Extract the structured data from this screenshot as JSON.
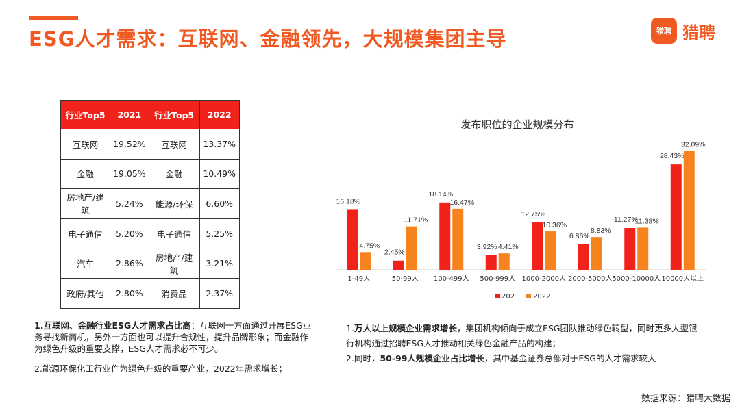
{
  "header": {
    "title": "ESG人才需求：互联网、金融领先，大规模集团主导",
    "logo_mark": "猎聘",
    "logo_text": "猎聘"
  },
  "colors": {
    "accent": "#f05a22",
    "table_header": "#f0221a",
    "series_2021": "#f0221a",
    "series_2022": "#f7831f"
  },
  "table": {
    "headers": [
      "行业Top5",
      "2021",
      "行业Top5",
      "2022"
    ],
    "rows": [
      [
        "互联网",
        "19.52%",
        "互联网",
        "13.37%"
      ],
      [
        "金融",
        "19.05%",
        "金融",
        "10.49%"
      ],
      [
        "房地产/建筑",
        "5.24%",
        "能源/环保",
        "6.60%"
      ],
      [
        "电子通信",
        "5.20%",
        "电子通信",
        "5.25%"
      ],
      [
        "汽车",
        "2.86%",
        "房地产/建筑",
        "3.21%"
      ],
      [
        "政府/其他",
        "2.80%",
        "消费品",
        "2.37%"
      ]
    ]
  },
  "chart_data": {
    "type": "bar",
    "title": "发布职位的企业规模分布",
    "categories": [
      "1-49人",
      "50-99人",
      "100-499人",
      "500-999人",
      "1000-2000人",
      "2000-5000人",
      "5000-10000人",
      "10000人以上"
    ],
    "series": [
      {
        "name": "2021",
        "values": [
          16.18,
          2.45,
          18.14,
          3.92,
          12.75,
          6.86,
          11.27,
          28.43
        ],
        "labels": [
          "16.18%",
          "2.45%",
          "18.14%",
          "3.92%",
          "12.75%",
          "6.86%",
          "11.27%",
          "28.43%"
        ]
      },
      {
        "name": "2022",
        "values": [
          4.75,
          11.71,
          16.47,
          4.41,
          10.36,
          8.83,
          11.38,
          32.09
        ],
        "labels": [
          "4.75%",
          "11.71%",
          "16.47%",
          "4.41%",
          "10.36%",
          "8.83%",
          "11.38%",
          "32.09%"
        ]
      }
    ],
    "ylim": [
      0,
      34
    ],
    "legend_position": "bottom"
  },
  "notes_left": {
    "p1_bold": "1.互联网、金融行业ESG人才需求占比高",
    "p1_rest": "：互联网一方面通过开展ESG业务寻找新商机，另外一方面也可以提升合规性，提升品牌形象；而金融作为绿色升级的重要支撑，ESG人才需求必不可少。",
    "p2": "2.能源环保化工行业作为绿色升级的重要产业，2022年需求增长；"
  },
  "notes_right": {
    "p1_prefix": "1.",
    "p1_bold": "万人以上规模企业需求增长",
    "p1_rest": "，集团机构倾向于成立ESG团队推动绿色转型，同时更多大型银行机构通过招聘ESG人才推动相关绿色金融产品的构建；",
    "p2_prefix": "2.同时，",
    "p2_bold": "50-99人规模企业占比增长",
    "p2_rest": "，其中基金证券总部对于ESG的人才需求较大"
  },
  "source": "数据来源：猎聘大数据"
}
